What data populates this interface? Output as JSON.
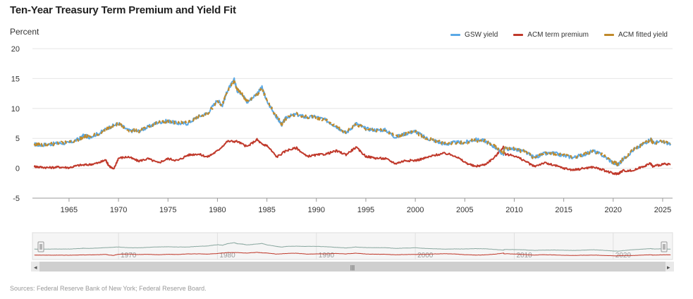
{
  "chart_data": {
    "type": "line",
    "title": "Ten-Year Treasury Term Premium and Yield Fit",
    "ylabel": "Percent",
    "xlabel": "",
    "ylim": [
      -5,
      20
    ],
    "xlim": [
      1961.3,
      2026.0
    ],
    "y_ticks": [
      20,
      15,
      10,
      5,
      0,
      -5
    ],
    "x_ticks": [
      1965,
      1970,
      1975,
      1980,
      1985,
      1990,
      1995,
      2000,
      2005,
      2010,
      2015,
      2020,
      2025
    ],
    "legend_position": "top-right",
    "series": [
      {
        "name": "GSW yield",
        "color": "#5aa9e6",
        "x": [
          1961.5,
          1962,
          1963,
          1964,
          1965,
          1966,
          1966.5,
          1967,
          1968,
          1969,
          1970,
          1971,
          1972,
          1973,
          1974,
          1975,
          1976,
          1977,
          1978,
          1979,
          1980,
          1980.5,
          1981,
          1981.7,
          1982,
          1982.5,
          1983,
          1984,
          1984.5,
          1985,
          1986,
          1986.5,
          1987,
          1988,
          1989,
          1990,
          1991,
          1992,
          1993,
          1994,
          1995,
          1996,
          1997,
          1998,
          1999,
          2000,
          2001,
          2002,
          2003,
          2004,
          2005,
          2006,
          2007,
          2008,
          2008.9,
          2009,
          2010,
          2011,
          2012,
          2013,
          2014,
          2015,
          2016,
          2017,
          2018,
          2019,
          2020,
          2020.5,
          2021,
          2022,
          2023,
          2023.8,
          2024,
          2025,
          2025.8
        ],
        "values": [
          4.0,
          3.9,
          4.0,
          4.2,
          4.2,
          4.9,
          5.5,
          5.2,
          5.8,
          6.8,
          7.5,
          6.3,
          6.2,
          6.9,
          7.7,
          7.9,
          7.5,
          7.5,
          8.6,
          9.2,
          11.4,
          10.5,
          13.0,
          14.8,
          13.0,
          12.5,
          11.0,
          12.5,
          13.5,
          11.2,
          8.5,
          7.3,
          8.6,
          9.0,
          8.5,
          8.6,
          8.0,
          7.0,
          5.9,
          7.5,
          6.6,
          6.4,
          6.4,
          5.2,
          5.8,
          6.2,
          5.1,
          4.6,
          4.0,
          4.3,
          4.3,
          4.8,
          4.6,
          3.6,
          2.3,
          3.3,
          3.2,
          2.8,
          1.8,
          2.4,
          2.5,
          2.1,
          1.8,
          2.3,
          2.9,
          2.1,
          0.9,
          0.6,
          1.5,
          3.0,
          4.0,
          4.9,
          4.3,
          4.4,
          4.1
        ]
      },
      {
        "name": "ACM term premium",
        "color": "#c0392b",
        "x": [
          1961.5,
          1962,
          1963,
          1964,
          1965,
          1966,
          1967,
          1968,
          1968.7,
          1969,
          1969.5,
          1970,
          1971,
          1972,
          1973,
          1974,
          1975,
          1976,
          1977,
          1978,
          1979,
          1980,
          1981,
          1982,
          1983,
          1984,
          1984.5,
          1985,
          1986,
          1987,
          1988,
          1989,
          1990,
          1991,
          1992,
          1993,
          1994,
          1995,
          1996,
          1997,
          1998,
          1999,
          2000,
          2001,
          2002,
          2003,
          2004,
          2005,
          2006,
          2007,
          2008,
          2008.9,
          2009,
          2010,
          2011,
          2012,
          2013,
          2014,
          2015,
          2016,
          2017,
          2018,
          2019,
          2020,
          2020.5,
          2021,
          2022,
          2023,
          2023.8,
          2024,
          2025,
          2025.8
        ],
        "values": [
          0.3,
          0.2,
          0.1,
          0.2,
          0.1,
          0.5,
          0.6,
          0.9,
          1.4,
          0.5,
          -0.2,
          1.7,
          1.9,
          1.2,
          1.6,
          0.9,
          1.6,
          1.3,
          2.2,
          2.4,
          1.9,
          2.9,
          4.5,
          4.5,
          3.6,
          4.8,
          4.0,
          3.8,
          1.9,
          3.0,
          3.4,
          2.0,
          2.2,
          2.4,
          2.9,
          2.3,
          3.5,
          2.0,
          1.7,
          1.6,
          0.8,
          1.3,
          1.3,
          1.7,
          2.2,
          2.5,
          2.1,
          1.0,
          0.3,
          0.6,
          1.8,
          3.6,
          2.4,
          2.1,
          1.3,
          0.3,
          0.9,
          0.5,
          0.0,
          -0.3,
          0.0,
          0.2,
          -0.3,
          -0.9,
          -0.9,
          -0.4,
          -0.4,
          0.3,
          0.8,
          0.3,
          0.7,
          0.6
        ]
      },
      {
        "name": "ACM fitted yield",
        "color": "#c08a2b",
        "x": [
          1961.5,
          1962,
          1963,
          1964,
          1965,
          1966,
          1966.5,
          1967,
          1968,
          1969,
          1970,
          1971,
          1972,
          1973,
          1974,
          1975,
          1976,
          1977,
          1978,
          1979,
          1980,
          1980.5,
          1981,
          1981.7,
          1982,
          1982.5,
          1983,
          1984,
          1984.5,
          1985,
          1986,
          1986.5,
          1987,
          1988,
          1989,
          1990,
          1991,
          1992,
          1993,
          1994,
          1995,
          1996,
          1997,
          1998,
          1999,
          2000,
          2001,
          2002,
          2003,
          2004,
          2005,
          2006,
          2007,
          2008,
          2008.9,
          2009,
          2010,
          2011,
          2012,
          2013,
          2014,
          2015,
          2016,
          2017,
          2018,
          2019,
          2020,
          2020.5,
          2021,
          2022,
          2023,
          2023.8,
          2024,
          2025,
          2025.8
        ],
        "values": [
          3.9,
          3.9,
          4.0,
          4.2,
          4.3,
          4.8,
          5.4,
          5.3,
          5.7,
          6.7,
          7.4,
          6.4,
          6.2,
          6.8,
          7.6,
          7.8,
          7.5,
          7.6,
          8.5,
          9.1,
          11.2,
          10.6,
          12.8,
          14.5,
          13.1,
          12.4,
          11.1,
          12.3,
          13.3,
          11.3,
          8.6,
          7.4,
          8.5,
          9.0,
          8.6,
          8.5,
          8.0,
          7.1,
          6.0,
          7.4,
          6.6,
          6.4,
          6.3,
          5.3,
          5.8,
          6.1,
          5.1,
          4.6,
          4.1,
          4.3,
          4.3,
          4.7,
          4.6,
          3.7,
          2.4,
          3.3,
          3.2,
          2.8,
          1.8,
          2.4,
          2.5,
          2.1,
          1.9,
          2.3,
          2.9,
          2.1,
          1.0,
          0.7,
          1.5,
          3.0,
          4.0,
          4.8,
          4.3,
          4.4,
          4.1
        ]
      }
    ],
    "navigator": {
      "x_ticks": [
        1970,
        1980,
        1990,
        2000,
        2010,
        2020
      ],
      "handle_glyph": "|||"
    },
    "source": "Sources: Federal Reserve Bank of New York; Federal Reserve Board."
  }
}
